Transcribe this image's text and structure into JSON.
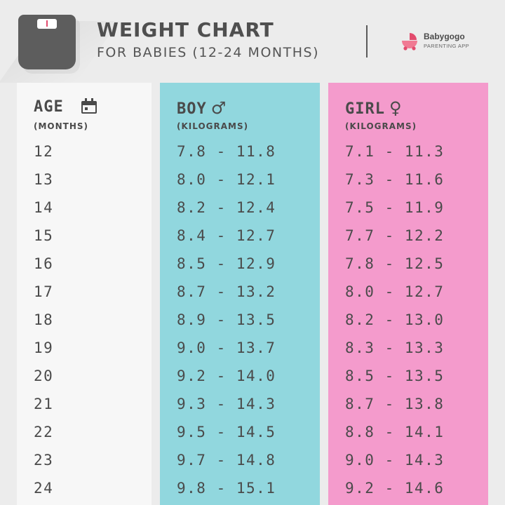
{
  "header": {
    "title": "WEIGHT CHART",
    "subtitle": "FOR BABIES (12-24 MONTHS)",
    "brand_name": "Babygogo",
    "brand_tagline": "PARENTING APP",
    "icons": [
      "weighing-scale-icon",
      "babygogo-logo-icon"
    ]
  },
  "colors": {
    "background": "#ececec",
    "age_column": "#f7f7f7",
    "boy_column": "#91d7de",
    "girl_column": "#f49bcc",
    "text": "#4a4a4a",
    "brand_accent": "#e24b6d"
  },
  "columns": {
    "age": {
      "label": "AGE",
      "unit": "(MONTHS)",
      "icon": "calendar-icon"
    },
    "boy": {
      "label": "BOY",
      "symbol": "♂",
      "unit": "(KILOGRAMS)"
    },
    "girl": {
      "label": "GIRL",
      "symbol": "♀",
      "unit": "(KILOGRAMS)"
    }
  },
  "chart_data": {
    "type": "table",
    "title": "WEIGHT CHART",
    "subtitle": "FOR BABIES (12-24 MONTHS)",
    "columns": [
      "AGE (MONTHS)",
      "BOY (KILOGRAMS)",
      "GIRL (KILOGRAMS)"
    ],
    "rows": [
      {
        "age": "12",
        "boy": "7.8 - 11.8",
        "girl": "7.1 - 11.3"
      },
      {
        "age": "13",
        "boy": "8.0 - 12.1",
        "girl": "7.3 - 11.6"
      },
      {
        "age": "14",
        "boy": "8.2 - 12.4",
        "girl": "7.5 - 11.9"
      },
      {
        "age": "15",
        "boy": "8.4 - 12.7",
        "girl": "7.7 - 12.2"
      },
      {
        "age": "16",
        "boy": "8.5 - 12.9",
        "girl": "7.8 - 12.5"
      },
      {
        "age": "17",
        "boy": "8.7 - 13.2",
        "girl": "8.0 - 12.7"
      },
      {
        "age": "18",
        "boy": "8.9 - 13.5",
        "girl": "8.2 - 13.0"
      },
      {
        "age": "19",
        "boy": "9.0 - 13.7",
        "girl": "8.3 - 13.3"
      },
      {
        "age": "20",
        "boy": "9.2 - 14.0",
        "girl": "8.5 - 13.5"
      },
      {
        "age": "21",
        "boy": "9.3 - 14.3",
        "girl": "8.7 - 13.8"
      },
      {
        "age": "22",
        "boy": "9.5 - 14.5",
        "girl": "8.8 - 14.1"
      },
      {
        "age": "23",
        "boy": "9.7 - 14.8",
        "girl": "9.0 - 14.3"
      },
      {
        "age": "24",
        "boy": "9.8 - 15.1",
        "girl": "9.2 - 14.6"
      }
    ]
  }
}
